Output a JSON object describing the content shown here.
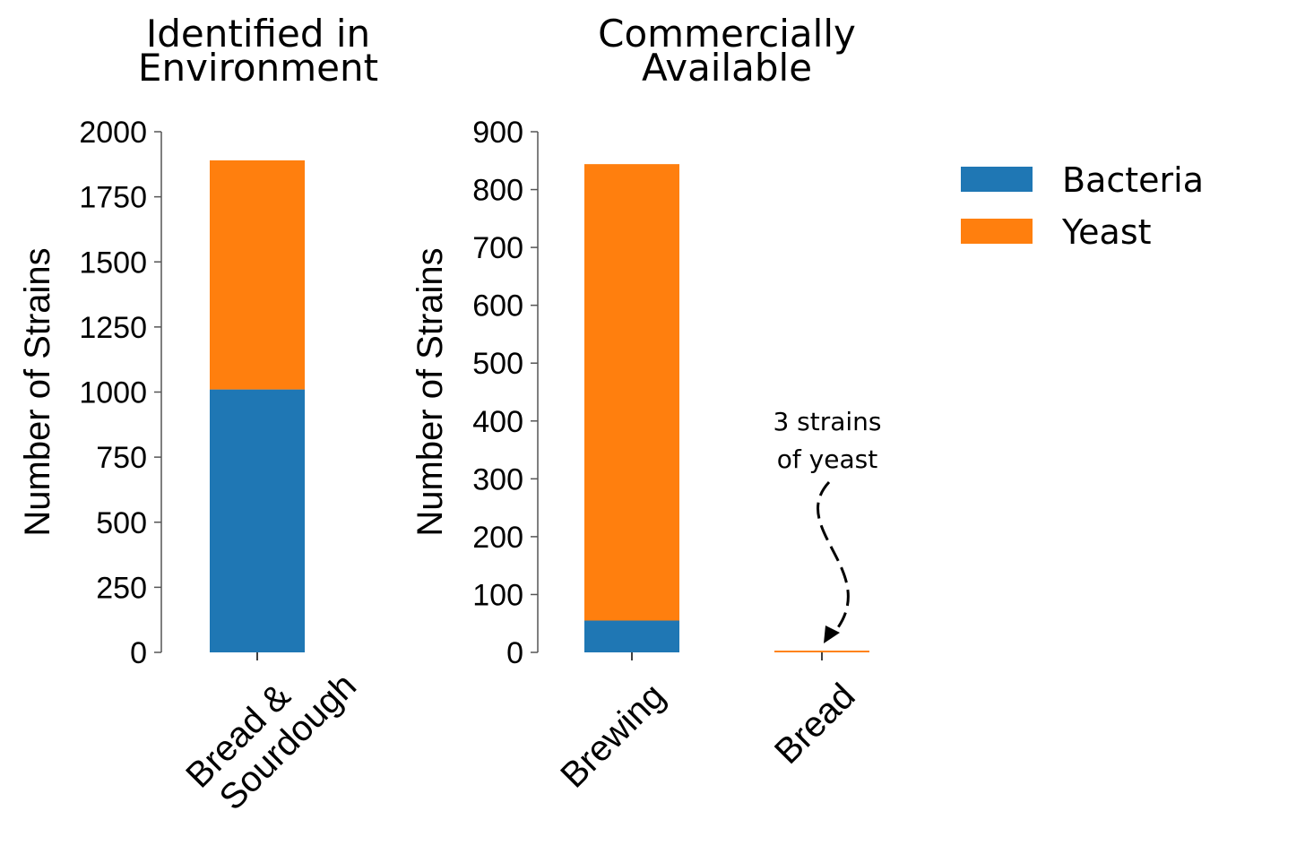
{
  "colors": {
    "Bacteria": "#1f77b4",
    "Yeast": "#ff7f0e"
  },
  "legend": {
    "placement": "top-right",
    "items": [
      "Bacteria",
      "Yeast"
    ]
  },
  "chart_data": [
    {
      "type": "bar",
      "stacked": true,
      "title": [
        "Identified in",
        "Environment"
      ],
      "ylabel": "Number of Strains",
      "ylim": [
        0,
        2000
      ],
      "yticks": [
        "0",
        "250",
        "500",
        "750",
        "1000",
        "1250",
        "1500",
        "1750",
        "2000"
      ],
      "categories": [
        [
          "Bread &",
          "Sourdough"
        ]
      ],
      "series": [
        {
          "name": "Bacteria",
          "values": [
            1010
          ]
        },
        {
          "name": "Yeast",
          "values": [
            880
          ]
        }
      ]
    },
    {
      "type": "bar",
      "stacked": true,
      "title": [
        "Commercially",
        "Available"
      ],
      "ylabel": "Number of Strains",
      "ylim": [
        0,
        900
      ],
      "yticks": [
        "0",
        "100",
        "200",
        "300",
        "400",
        "500",
        "600",
        "700",
        "800",
        "900"
      ],
      "categories": [
        [
          "Brewing"
        ],
        [
          "Bread"
        ]
      ],
      "series": [
        {
          "name": "Bacteria",
          "values": [
            55,
            0
          ]
        },
        {
          "name": "Yeast",
          "values": [
            789,
            3
          ]
        }
      ],
      "annotation": {
        "text": [
          "3 strains",
          "of yeast"
        ],
        "target_category": "Bread"
      }
    }
  ]
}
